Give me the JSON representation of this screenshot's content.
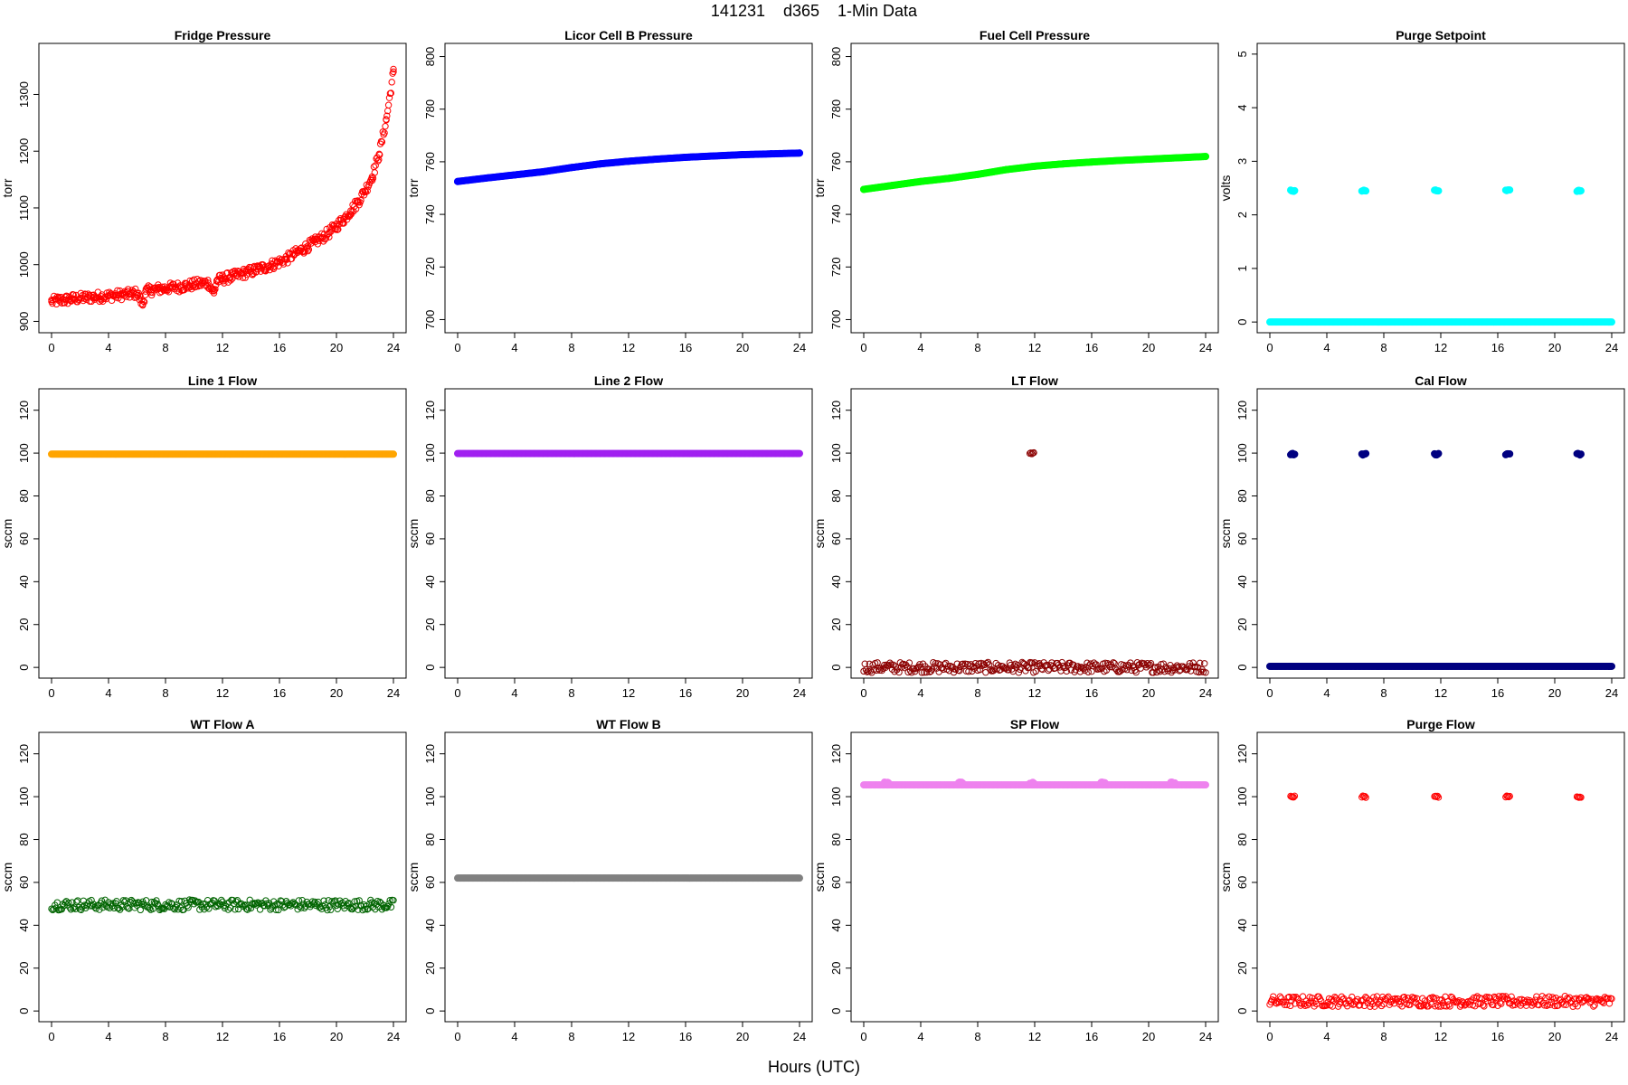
{
  "page": {
    "title": "141231    d365    1-Min Data",
    "xlabel": "Hours (UTC)"
  },
  "chart_data": [
    {
      "type": "scatter",
      "title": "Fridge Pressure",
      "ylabel": "torr",
      "color": "#ff0000",
      "marker": "open-circle",
      "xlim": [
        0,
        24
      ],
      "ylim": [
        880,
        1390
      ],
      "xticks": [
        0,
        4,
        8,
        12,
        16,
        20,
        24
      ],
      "yticks": [
        900,
        1000,
        1100,
        1200,
        1300
      ],
      "x": [
        0,
        0.5,
        1,
        1.5,
        2,
        2.5,
        3,
        3.5,
        4,
        4.5,
        5,
        5.5,
        6,
        6.4,
        6.6,
        7,
        7.5,
        8,
        8.5,
        9,
        9.5,
        10,
        10.5,
        11,
        11.4,
        11.6,
        12,
        12.5,
        13,
        13.5,
        14,
        14.5,
        15,
        15.5,
        16,
        16.5,
        17,
        17.5,
        18,
        18.5,
        19,
        19.5,
        20,
        20.5,
        21,
        21.5,
        22,
        22.5,
        23,
        23.5,
        24
      ],
      "y": [
        935,
        937,
        938,
        940,
        941,
        942,
        943,
        944,
        945,
        946,
        947,
        948,
        950,
        930,
        953,
        955,
        957,
        958,
        960,
        961,
        963,
        965,
        967,
        968,
        950,
        972,
        975,
        978,
        981,
        985,
        988,
        992,
        996,
        1000,
        1005,
        1010,
        1018,
        1025,
        1033,
        1040,
        1048,
        1057,
        1068,
        1080,
        1095,
        1110,
        1130,
        1155,
        1195,
        1255,
        1340
      ]
    },
    {
      "type": "scatter",
      "title": "Licor Cell B Pressure",
      "ylabel": "torr",
      "color": "#0000ff",
      "marker": "filled-circle",
      "xlim": [
        0,
        24
      ],
      "ylim": [
        695,
        805
      ],
      "xticks": [
        0,
        4,
        8,
        12,
        16,
        20,
        24
      ],
      "yticks": [
        700,
        720,
        740,
        760,
        780,
        800
      ],
      "x": [
        0,
        2,
        4,
        6,
        8,
        10,
        12,
        14,
        16,
        18,
        20,
        22,
        24
      ],
      "y": [
        752.5,
        753.8,
        755,
        756.2,
        757.8,
        759.2,
        760.2,
        761,
        761.7,
        762.2,
        762.7,
        763,
        763.3
      ]
    },
    {
      "type": "scatter",
      "title": "Fuel Cell Pressure",
      "ylabel": "torr",
      "color": "#00ff00",
      "marker": "filled-circle",
      "xlim": [
        0,
        24
      ],
      "ylim": [
        695,
        805
      ],
      "xticks": [
        0,
        4,
        8,
        12,
        16,
        20,
        24
      ],
      "yticks": [
        700,
        720,
        740,
        760,
        780,
        800
      ],
      "x": [
        0,
        2,
        4,
        6,
        8,
        10,
        12,
        14,
        16,
        18,
        20,
        22,
        24
      ],
      "y": [
        749.5,
        751,
        752.5,
        753.7,
        755.2,
        757,
        758.3,
        759.2,
        759.9,
        760.5,
        761,
        761.5,
        762
      ]
    },
    {
      "type": "scatter",
      "title": "Purge Setpoint",
      "ylabel": "volts",
      "color": "#00ffff",
      "marker": "filled-circle",
      "xlim": [
        0,
        24
      ],
      "ylim": [
        -0.2,
        5.2
      ],
      "xticks": [
        0,
        4,
        8,
        12,
        16,
        20,
        24
      ],
      "yticks": [
        0,
        1,
        2,
        3,
        4,
        5
      ],
      "baseline": 0,
      "spikes": [
        [
          1.6,
          2.45
        ],
        [
          6.6,
          2.45
        ],
        [
          11.7,
          2.45
        ],
        [
          16.7,
          2.45
        ],
        [
          21.7,
          2.45
        ]
      ]
    },
    {
      "type": "scatter",
      "title": "Line 1 Flow",
      "ylabel": "sccm",
      "color": "#ffa500",
      "marker": "filled-circle",
      "xlim": [
        0,
        24
      ],
      "ylim": [
        -5,
        130
      ],
      "xticks": [
        0,
        4,
        8,
        12,
        16,
        20,
        24
      ],
      "yticks": [
        0,
        20,
        40,
        60,
        80,
        100,
        120
      ],
      "baseline": 99.5
    },
    {
      "type": "scatter",
      "title": "Line 2 Flow",
      "ylabel": "sccm",
      "color": "#a020f0",
      "marker": "filled-circle",
      "xlim": [
        0,
        24
      ],
      "ylim": [
        -5,
        130
      ],
      "xticks": [
        0,
        4,
        8,
        12,
        16,
        20,
        24
      ],
      "yticks": [
        0,
        20,
        40,
        60,
        80,
        100,
        120
      ],
      "baseline": 99.8
    },
    {
      "type": "scatter",
      "title": "LT Flow",
      "ylabel": "sccm",
      "color": "#8b0000",
      "marker": "open-circle",
      "xlim": [
        0,
        24
      ],
      "ylim": [
        -5,
        130
      ],
      "xticks": [
        0,
        4,
        8,
        12,
        16,
        20,
        24
      ],
      "yticks": [
        0,
        20,
        40,
        60,
        80,
        100,
        120
      ],
      "baseline": 0,
      "spikes": [
        [
          11.8,
          100
        ]
      ]
    },
    {
      "type": "scatter",
      "title": "Cal Flow",
      "ylabel": "sccm",
      "color": "#000080",
      "marker": "filled-circle",
      "xlim": [
        0,
        24
      ],
      "ylim": [
        -5,
        130
      ],
      "xticks": [
        0,
        4,
        8,
        12,
        16,
        20,
        24
      ],
      "yticks": [
        0,
        20,
        40,
        60,
        80,
        100,
        120
      ],
      "baseline": 0.5,
      "spikes": [
        [
          1.6,
          99.5
        ],
        [
          6.6,
          99.5
        ],
        [
          11.7,
          99.5
        ],
        [
          16.7,
          99.5
        ],
        [
          21.7,
          99.5
        ]
      ]
    },
    {
      "type": "scatter",
      "title": "WT Flow A",
      "ylabel": "sccm",
      "color": "#006400",
      "marker": "open-circle",
      "xlim": [
        0,
        24
      ],
      "ylim": [
        -5,
        130
      ],
      "xticks": [
        0,
        4,
        8,
        12,
        16,
        20,
        24
      ],
      "yticks": [
        0,
        20,
        40,
        60,
        80,
        100,
        120
      ],
      "baseline": 49.5
    },
    {
      "type": "scatter",
      "title": "WT Flow B",
      "ylabel": "sccm",
      "color": "#808080",
      "marker": "filled-circle",
      "xlim": [
        0,
        24
      ],
      "ylim": [
        -5,
        130
      ],
      "xticks": [
        0,
        4,
        8,
        12,
        16,
        20,
        24
      ],
      "yticks": [
        0,
        20,
        40,
        60,
        80,
        100,
        120
      ],
      "baseline": 62
    },
    {
      "type": "scatter",
      "title": "SP Flow",
      "ylabel": "sccm",
      "color": "#ee82ee",
      "marker": "filled-circle",
      "xlim": [
        0,
        24
      ],
      "ylim": [
        -5,
        130
      ],
      "xticks": [
        0,
        4,
        8,
        12,
        16,
        20,
        24
      ],
      "yticks": [
        0,
        20,
        40,
        60,
        80,
        100,
        120
      ],
      "baseline": 105.5,
      "spikes": [
        [
          1.6,
          106.5
        ],
        [
          6.8,
          106.5
        ],
        [
          11.8,
          106.5
        ],
        [
          16.8,
          106.5
        ],
        [
          21.7,
          106.5
        ]
      ]
    },
    {
      "type": "scatter",
      "title": "Purge Flow",
      "ylabel": "sccm",
      "color": "#ff0000",
      "marker": "open-circle",
      "xlim": [
        0,
        24
      ],
      "ylim": [
        -5,
        130
      ],
      "xticks": [
        0,
        4,
        8,
        12,
        16,
        20,
        24
      ],
      "yticks": [
        0,
        20,
        40,
        60,
        80,
        100,
        120
      ],
      "baseline": 4.5,
      "spikes": [
        [
          1.6,
          100
        ],
        [
          6.6,
          100
        ],
        [
          11.7,
          100
        ],
        [
          16.7,
          100
        ],
        [
          21.7,
          100
        ]
      ]
    }
  ]
}
